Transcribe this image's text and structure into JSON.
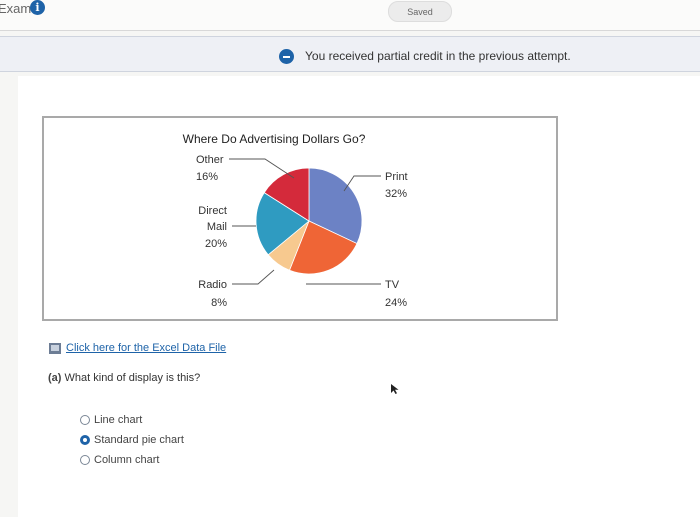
{
  "header": {
    "exam_label": "Exam",
    "saved_label": "Saved"
  },
  "notice": {
    "text": "You received partial credit in the previous attempt."
  },
  "chart_data": {
    "type": "pie",
    "title": "Where Do Advertising Dollars Go?",
    "slices": [
      {
        "label": "Print",
        "value": 32,
        "display": "32%",
        "color": "#6c82c5"
      },
      {
        "label": "TV",
        "value": 24,
        "display": "24%",
        "color": "#ef6536"
      },
      {
        "label": "Radio",
        "value": 8,
        "display": "8%",
        "color": "#f7c98f"
      },
      {
        "label": "Direct Mail",
        "value": 20,
        "display": "20%",
        "color": "#2f9bc1"
      },
      {
        "label": "Other",
        "value": 16,
        "display": "16%",
        "color": "#d42a3b"
      }
    ]
  },
  "resources": {
    "excel_link": "Click here for the Excel Data File"
  },
  "question": {
    "label": "(a)",
    "text": "What kind of display is this?",
    "options": [
      {
        "label": "Line chart",
        "selected": false
      },
      {
        "label": "Standard pie chart",
        "selected": true
      },
      {
        "label": "Column chart",
        "selected": false
      }
    ]
  }
}
